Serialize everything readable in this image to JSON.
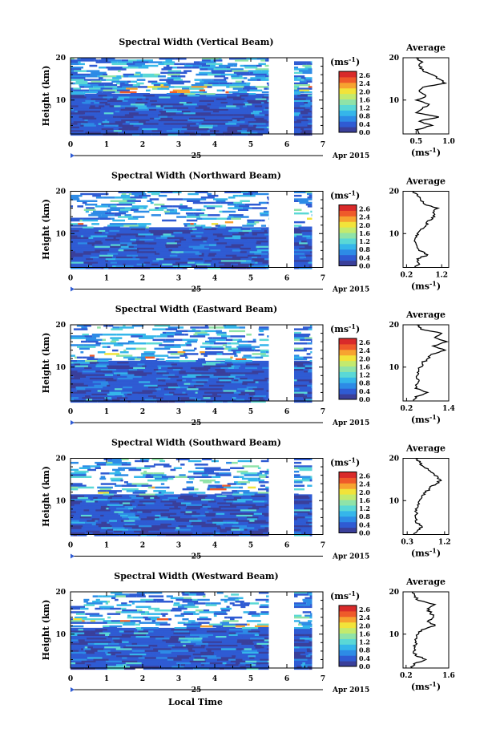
{
  "figure": {
    "x_axis_label": "Local Time",
    "date_marker": "25",
    "month_label": "Apr 2015",
    "height_axis_label": "Height (km)",
    "unit_label": "(ms",
    "unit_superscript": "-1",
    "average_title": "Average"
  },
  "colorbar": {
    "colors": [
      "#3a3f9a",
      "#2f5bd3",
      "#2d8be6",
      "#35b6ea",
      "#5ad8d6",
      "#8fe3a8",
      "#c3ea6e",
      "#f2e33a",
      "#f7a330",
      "#ef5a2a",
      "#d92a2a"
    ],
    "tick_labels": [
      "2.6",
      "2.4",
      "2.0",
      "1.6",
      "1.2",
      "0.8",
      "0.4",
      "0.0"
    ]
  },
  "panels": [
    {
      "title": "Spectral Width (Vertical Beam)",
      "avg_ticks": [
        "0.5",
        "1.0"
      ]
    },
    {
      "title": "Spectral Width (Northward Beam)",
      "avg_ticks": [
        "0.2",
        "1.2"
      ]
    },
    {
      "title": "Spectral Width (Eastward Beam)",
      "avg_ticks": [
        "0.2",
        "1.4"
      ]
    },
    {
      "title": "Spectral Width (Southward Beam)",
      "avg_ticks": [
        "0.3",
        "1.2"
      ]
    },
    {
      "title": "Spectral Width (Westward Beam)",
      "avg_ticks": [
        "0.2",
        "1.6"
      ]
    }
  ],
  "chart_data": [
    {
      "type": "heatmap",
      "title": "Spectral Width (Vertical Beam)",
      "xlabel": "Local Time",
      "ylabel": "Height (km)",
      "x_ticks": [
        0,
        1,
        2,
        3,
        4,
        5,
        6,
        7
      ],
      "y_ticks": [
        10,
        20
      ],
      "xlim": [
        0,
        7
      ],
      "ylim": [
        2,
        20
      ],
      "colorbar_unit": "ms-1",
      "colorbar_range": [
        0,
        2.8
      ],
      "data_gaps": [
        [
          5.5,
          6.2
        ]
      ],
      "data_end": 6.7,
      "average_profile": {
        "title": "Average",
        "xlim": [
          0.3,
          1.0
        ],
        "x_ticks": [
          0.5,
          1.0
        ],
        "y_ticks": [
          10,
          20
        ],
        "heights": [
          2,
          3,
          4,
          5,
          6,
          7,
          8,
          9,
          10,
          11,
          12,
          13,
          14,
          15,
          16,
          17,
          18,
          19,
          20
        ],
        "values": [
          0.55,
          0.5,
          0.75,
          0.55,
          0.85,
          0.5,
          0.6,
          0.7,
          0.5,
          0.65,
          0.55,
          0.6,
          0.95,
          0.85,
          0.75,
          0.6,
          0.55,
          0.6,
          0.5
        ]
      }
    },
    {
      "type": "heatmap",
      "title": "Spectral Width (Northward Beam)",
      "xlabel": "Local Time",
      "ylabel": "Height (km)",
      "x_ticks": [
        0,
        1,
        2,
        3,
        4,
        5,
        6,
        7
      ],
      "y_ticks": [
        10,
        20
      ],
      "xlim": [
        0,
        7
      ],
      "ylim": [
        2,
        20
      ],
      "colorbar_unit": "ms-1",
      "colorbar_range": [
        0,
        2.8
      ],
      "data_gaps": [
        [
          5.5,
          6.2
        ]
      ],
      "data_end": 6.7,
      "average_profile": {
        "title": "Average",
        "xlim": [
          0.1,
          1.4
        ],
        "x_ticks": [
          0.2,
          1.2
        ],
        "y_ticks": [
          10,
          20
        ],
        "heights": [
          2,
          3,
          4,
          5,
          6,
          7,
          8,
          9,
          10,
          11,
          12,
          13,
          14,
          15,
          16,
          17,
          18,
          19,
          20
        ],
        "values": [
          0.45,
          0.55,
          0.5,
          0.8,
          0.55,
          0.5,
          0.45,
          0.45,
          0.5,
          0.6,
          0.75,
          0.8,
          1.0,
          0.95,
          1.1,
          0.7,
          0.6,
          0.5,
          0.4
        ]
      }
    },
    {
      "type": "heatmap",
      "title": "Spectral Width (Eastward Beam)",
      "xlabel": "Local Time",
      "ylabel": "Height (km)",
      "x_ticks": [
        0,
        1,
        2,
        3,
        4,
        5,
        6,
        7
      ],
      "y_ticks": [
        10,
        20
      ],
      "xlim": [
        0,
        7
      ],
      "ylim": [
        2,
        20
      ],
      "colorbar_unit": "ms-1",
      "colorbar_range": [
        0,
        2.8
      ],
      "data_gaps": [
        [
          5.5,
          6.2
        ]
      ],
      "data_end": 6.7,
      "average_profile": {
        "title": "Average",
        "xlim": [
          0.1,
          1.4
        ],
        "x_ticks": [
          0.2,
          1.4
        ],
        "y_ticks": [
          10,
          20
        ],
        "heights": [
          2,
          3,
          4,
          5,
          6,
          7,
          8,
          9,
          10,
          11,
          12,
          13,
          14,
          15,
          16,
          17,
          18,
          19,
          20
        ],
        "values": [
          0.4,
          0.45,
          0.8,
          0.45,
          0.5,
          0.55,
          0.5,
          0.55,
          0.6,
          0.65,
          0.8,
          0.9,
          1.3,
          0.95,
          1.35,
          1.0,
          1.2,
          0.6,
          0.5
        ]
      }
    },
    {
      "type": "heatmap",
      "title": "Spectral Width (Southward Beam)",
      "xlabel": "Local Time",
      "ylabel": "Height (km)",
      "x_ticks": [
        0,
        1,
        2,
        3,
        4,
        5,
        6,
        7
      ],
      "y_ticks": [
        10,
        20
      ],
      "xlim": [
        0,
        7
      ],
      "ylim": [
        2,
        20
      ],
      "colorbar_unit": "ms-1",
      "colorbar_range": [
        0,
        2.8
      ],
      "data_gaps": [
        [
          5.5,
          6.2
        ]
      ],
      "data_end": 6.7,
      "average_profile": {
        "title": "Average",
        "xlim": [
          0.2,
          1.3
        ],
        "x_ticks": [
          0.3,
          1.2
        ],
        "y_ticks": [
          10,
          20
        ],
        "heights": [
          2,
          3,
          4,
          5,
          6,
          7,
          8,
          9,
          10,
          11,
          12,
          13,
          14,
          15,
          16,
          17,
          18,
          19,
          20
        ],
        "values": [
          0.45,
          0.55,
          0.65,
          0.5,
          0.5,
          0.55,
          0.5,
          0.55,
          0.6,
          0.65,
          0.75,
          0.85,
          1.0,
          1.1,
          0.95,
          0.85,
          0.7,
          0.6,
          0.5
        ]
      }
    },
    {
      "type": "heatmap",
      "title": "Spectral Width (Westward Beam)",
      "xlabel": "Local Time",
      "ylabel": "Height (km)",
      "x_ticks": [
        0,
        1,
        2,
        3,
        4,
        5,
        6,
        7
      ],
      "y_ticks": [
        10,
        20
      ],
      "xlim": [
        0,
        7
      ],
      "ylim": [
        2,
        20
      ],
      "colorbar_unit": "ms-1",
      "colorbar_range": [
        0,
        2.8
      ],
      "data_gaps": [
        [
          5.5,
          6.2
        ]
      ],
      "data_end": 6.7,
      "average_profile": {
        "title": "Average",
        "xlim": [
          0.1,
          1.6
        ],
        "x_ticks": [
          0.2,
          1.6
        ],
        "y_ticks": [
          10,
          20
        ],
        "heights": [
          2,
          3,
          4,
          5,
          6,
          7,
          8,
          9,
          10,
          11,
          12,
          13,
          14,
          15,
          16,
          17,
          18,
          19,
          20
        ],
        "values": [
          0.4,
          0.45,
          0.85,
          0.5,
          0.45,
          0.5,
          0.5,
          0.55,
          0.6,
          0.7,
          1.15,
          0.9,
          1.1,
          1.0,
          0.9,
          1.15,
          0.6,
          0.5,
          0.4
        ]
      }
    }
  ]
}
